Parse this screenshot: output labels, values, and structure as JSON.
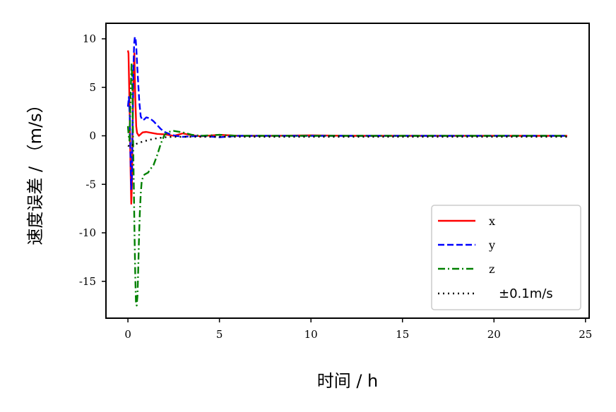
{
  "chart_data": {
    "type": "line",
    "title": "",
    "xlabel": "时间 / h",
    "ylabel": "速度误差 / （m/s）",
    "xlim": [
      -1.2,
      25.2
    ],
    "ylim": [
      -18.8,
      11.6
    ],
    "xticks": [
      0,
      5,
      10,
      15,
      20,
      25
    ],
    "yticks": [
      10,
      5,
      0,
      -5,
      -10,
      -15
    ],
    "xtick_labels": [
      "0",
      "5",
      "10",
      "15",
      "20",
      "25"
    ],
    "ytick_labels": [
      "10",
      "5",
      "0",
      "-5",
      "-10",
      "-15"
    ],
    "grid": false,
    "legend_position": "bottom-right",
    "series": [
      {
        "name": "x",
        "color": "#ff0000",
        "style": "solid",
        "x": [
          0,
          0.03,
          0.06,
          0.1,
          0.14,
          0.18,
          0.22,
          0.26,
          0.3,
          0.35,
          0.4,
          0.45,
          0.5,
          0.6,
          0.8,
          1.0,
          1.3,
          1.6,
          2.0,
          2.5,
          3.0,
          3.5,
          4.0,
          5.0,
          6.0,
          8.0,
          10.0,
          12.0,
          15.0,
          18.0,
          20.0,
          22.0,
          24.0
        ],
        "y": [
          8.8,
          8.5,
          6.0,
          2.0,
          -3.0,
          -7.0,
          -5.0,
          1.0,
          6.0,
          8.5,
          4.0,
          1.0,
          0.3,
          0.0,
          0.35,
          0.4,
          0.3,
          0.2,
          0.15,
          0.0,
          0.25,
          0.05,
          -0.05,
          0.1,
          0.0,
          0.0,
          0.05,
          0.0,
          0.0,
          0.0,
          0.0,
          0.0,
          0.0
        ]
      },
      {
        "name": "y",
        "color": "#0000ff",
        "style": "dashed",
        "x": [
          0,
          0.05,
          0.1,
          0.14,
          0.18,
          0.22,
          0.26,
          0.3,
          0.34,
          0.38,
          0.42,
          0.46,
          0.5,
          0.56,
          0.62,
          0.7,
          0.8,
          0.9,
          1.0,
          1.2,
          1.4,
          1.6,
          1.8,
          2.0,
          2.3,
          2.6,
          3.0,
          3.5,
          4.0,
          5.0,
          6.0,
          8.0,
          10.0,
          14.0,
          18.0,
          24.0
        ],
        "y": [
          3.0,
          4.0,
          2.0,
          -2.0,
          -5.5,
          -4.0,
          2.0,
          7.0,
          9.5,
          10.2,
          10.0,
          9.0,
          7.5,
          5.5,
          3.5,
          2.0,
          1.6,
          1.7,
          1.9,
          1.8,
          1.5,
          1.1,
          0.7,
          0.4,
          0.15,
          0.0,
          -0.1,
          -0.05,
          0.0,
          -0.15,
          0.0,
          0.0,
          0.0,
          0.0,
          0.0,
          0.0
        ]
      },
      {
        "name": "z",
        "color": "#008000",
        "style": "dashdot",
        "x": [
          0,
          0.04,
          0.08,
          0.12,
          0.16,
          0.2,
          0.24,
          0.28,
          0.32,
          0.36,
          0.4,
          0.44,
          0.48,
          0.52,
          0.56,
          0.6,
          0.65,
          0.7,
          0.75,
          0.8,
          0.85,
          0.9,
          1.0,
          1.1,
          1.2,
          1.4,
          1.6,
          1.8,
          2.0,
          2.2,
          2.5,
          3.0,
          3.5,
          4.0,
          5.0,
          6.0,
          8.0,
          12.0,
          16.0,
          20.0,
          24.0
        ],
        "y": [
          1.0,
          0.0,
          -0.5,
          2.0,
          5.0,
          7.5,
          5.0,
          0.0,
          -5.0,
          -10.0,
          -14.5,
          -17.3,
          -17.5,
          -16.5,
          -14.0,
          -11.0,
          -8.0,
          -6.0,
          -4.8,
          -4.4,
          -4.2,
          -4.0,
          -3.9,
          -3.8,
          -3.5,
          -3.0,
          -2.0,
          -0.8,
          0.1,
          0.4,
          0.5,
          0.35,
          0.1,
          0.0,
          0.1,
          0.0,
          0.0,
          0.0,
          0.0,
          0.0,
          0.0
        ]
      },
      {
        "name": "±0.1m/s",
        "color": "#000000",
        "style": "dotted",
        "x": [
          0,
          0.1,
          0.2,
          0.3,
          0.5,
          0.8,
          1.2,
          1.6,
          2.0,
          2.5,
          3.0,
          4.0,
          5.0,
          8.0,
          12.0,
          16.0,
          20.0,
          24.0
        ],
        "y": [
          -1.0,
          -1.1,
          -0.9,
          -1.0,
          -0.8,
          -0.6,
          -0.4,
          -0.25,
          -0.15,
          -0.1,
          -0.1,
          -0.1,
          -0.1,
          -0.1,
          -0.1,
          -0.1,
          -0.1,
          -0.1
        ]
      }
    ]
  }
}
